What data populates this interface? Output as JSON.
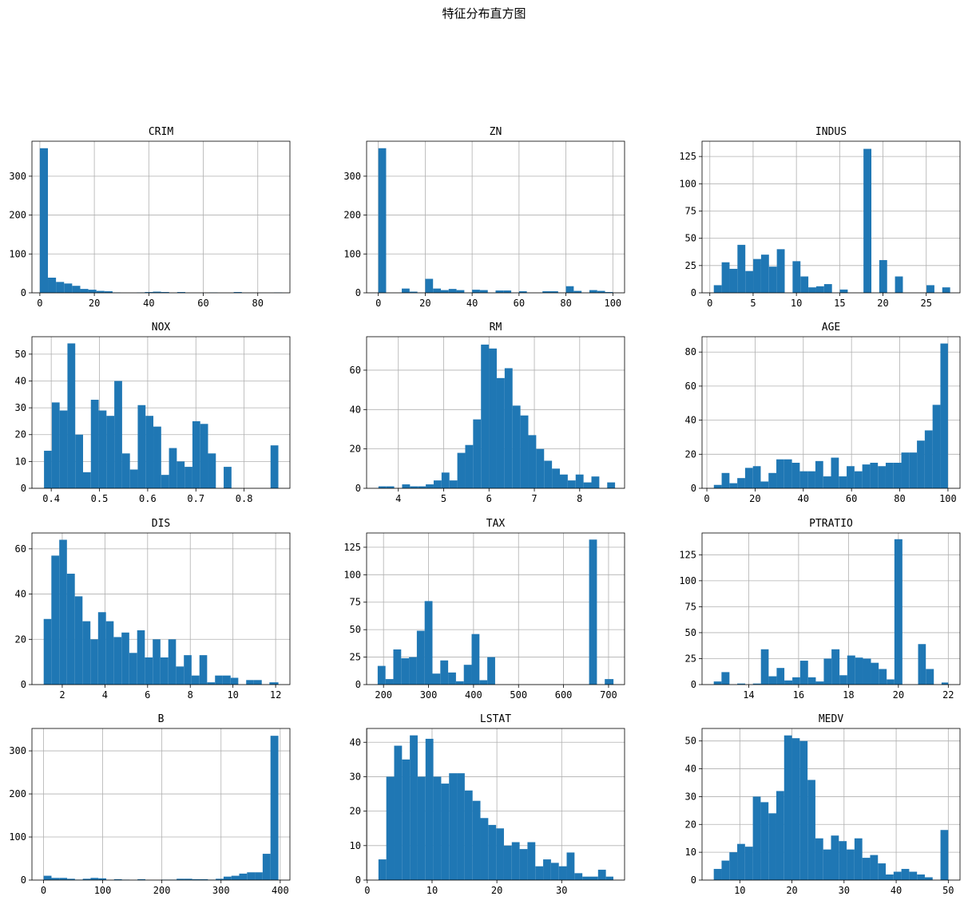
{
  "figure": {
    "title": "特征分布直方图",
    "bar_color": "#1f77b4",
    "grid_color": "#b0b0b0"
  },
  "chart_data": [
    {
      "type": "bar",
      "title": "CRIM",
      "xlim": [
        -2.9,
        91.8
      ],
      "ylim": [
        0,
        390
      ],
      "xticks": [
        0,
        20,
        40,
        60,
        80
      ],
      "yticks": [
        0,
        100,
        200,
        300
      ],
      "bin_edges": [
        0.0,
        2.97,
        5.93,
        8.9,
        11.86,
        14.83,
        17.79,
        20.76,
        23.72,
        26.69,
        29.65,
        32.62,
        35.58,
        38.55,
        41.52,
        44.48,
        47.45,
        50.41,
        53.38,
        56.34,
        59.31,
        62.27,
        65.24,
        68.2,
        71.17,
        74.14,
        77.1,
        80.07,
        83.03,
        86.0,
        88.97
      ],
      "counts": [
        372,
        39,
        28,
        24,
        18,
        10,
        8,
        5,
        4,
        1,
        0,
        0,
        1,
        2,
        3,
        2,
        0,
        2,
        0,
        0,
        0,
        1,
        0,
        0,
        2,
        0,
        0,
        0,
        0,
        1
      ]
    },
    {
      "type": "bar",
      "title": "ZN",
      "xlim": [
        -5,
        105
      ],
      "ylim": [
        0,
        390
      ],
      "xticks": [
        0,
        20,
        40,
        60,
        80,
        100
      ],
      "yticks": [
        0,
        100,
        200,
        300
      ],
      "bin_edges": [
        0.0,
        3.33,
        6.67,
        10.0,
        13.33,
        16.67,
        20.0,
        23.33,
        26.67,
        30.0,
        33.33,
        36.67,
        40.0,
        43.33,
        46.67,
        50.0,
        53.33,
        56.67,
        60.0,
        63.33,
        66.67,
        70.0,
        73.33,
        76.67,
        80.0,
        83.33,
        86.67,
        90.0,
        93.33,
        96.67,
        100.0
      ],
      "counts": [
        372,
        0,
        0,
        11,
        3,
        0,
        36,
        11,
        7,
        10,
        7,
        0,
        8,
        7,
        0,
        6,
        6,
        0,
        4,
        0,
        0,
        4,
        4,
        0,
        17,
        5,
        0,
        7,
        5,
        2
      ]
    },
    {
      "type": "bar",
      "title": "INDUS",
      "xlim": [
        -0.9,
        28.9
      ],
      "ylim": [
        0,
        139
      ],
      "xticks": [
        0,
        5,
        10,
        15,
        20,
        25
      ],
      "yticks": [
        0,
        25,
        50,
        75,
        100,
        125
      ],
      "bin_edges": [
        0.46,
        1.37,
        2.28,
        3.19,
        4.1,
        5.01,
        5.92,
        6.83,
        7.74,
        8.65,
        9.56,
        10.47,
        11.38,
        12.29,
        13.2,
        14.11,
        15.02,
        15.93,
        16.84,
        17.75,
        18.66,
        19.57,
        20.48,
        21.39,
        22.3,
        23.21,
        24.12,
        25.03,
        25.94,
        26.85,
        27.76
      ],
      "counts": [
        7,
        28,
        22,
        44,
        20,
        31,
        35,
        24,
        40,
        0,
        29,
        15,
        5,
        6,
        8,
        0,
        3,
        0,
        0,
        132,
        0,
        30,
        0,
        15,
        0,
        0,
        0,
        7,
        0,
        5
      ]
    },
    {
      "type": "bar",
      "title": "NOX",
      "xlim": [
        0.36,
        0.895
      ],
      "ylim": [
        0,
        56.5
      ],
      "xticks": [
        0.4,
        0.5,
        0.6,
        0.7,
        0.8
      ],
      "xtick_labels": [
        "0.4",
        "0.5",
        "0.6",
        "0.7",
        "0.8"
      ],
      "yticks": [
        0,
        10,
        20,
        30,
        40,
        50
      ],
      "bin_edges": [
        0.385,
        0.4012,
        0.4174,
        0.4336,
        0.4498,
        0.466,
        0.4822,
        0.4984,
        0.5146,
        0.5308,
        0.547,
        0.5632,
        0.5794,
        0.5956,
        0.6118,
        0.628,
        0.6442,
        0.6604,
        0.6766,
        0.6928,
        0.709,
        0.7252,
        0.7414,
        0.7576,
        0.7738,
        0.79,
        0.8062,
        0.8224,
        0.8386,
        0.8548,
        0.871
      ],
      "counts": [
        14,
        32,
        29,
        54,
        20,
        6,
        33,
        29,
        27,
        40,
        13,
        7,
        31,
        27,
        23,
        5,
        15,
        10,
        8,
        25,
        24,
        13,
        0,
        8,
        0,
        0,
        0,
        0,
        0,
        16
      ]
    },
    {
      "type": "bar",
      "title": "RM",
      "xlim": [
        3.3,
        8.99
      ],
      "ylim": [
        0,
        77
      ],
      "xticks": [
        4,
        5,
        6,
        7,
        8,
        9
      ],
      "yticks": [
        0,
        20,
        40,
        60
      ],
      "bin_edges": [
        3.561,
        3.735,
        3.909,
        4.083,
        4.257,
        4.431,
        4.605,
        4.779,
        4.953,
        5.127,
        5.301,
        5.475,
        5.649,
        5.823,
        5.997,
        6.171,
        6.345,
        6.519,
        6.693,
        6.867,
        7.041,
        7.215,
        7.389,
        7.563,
        7.737,
        7.911,
        8.085,
        8.259,
        8.433,
        8.607,
        8.78
      ],
      "counts": [
        1,
        1,
        0,
        2,
        1,
        1,
        2,
        4,
        8,
        4,
        18,
        22,
        35,
        73,
        71,
        56,
        61,
        42,
        37,
        27,
        20,
        14,
        10,
        7,
        4,
        7,
        3,
        6,
        0,
        3
      ]
    },
    {
      "type": "bar",
      "title": "AGE",
      "xlim": [
        -2,
        105
      ],
      "ylim": [
        0,
        89
      ],
      "xticks": [
        0,
        20,
        40,
        60,
        80,
        100
      ],
      "yticks": [
        0,
        20,
        40,
        60,
        80
      ],
      "bin_edges": [
        2.9,
        6.14,
        9.38,
        12.62,
        15.86,
        19.1,
        22.34,
        25.58,
        28.82,
        32.06,
        35.3,
        38.54,
        41.78,
        45.02,
        48.26,
        51.5,
        54.74,
        57.98,
        61.22,
        64.46,
        67.7,
        70.94,
        74.18,
        77.42,
        80.66,
        83.9,
        87.14,
        90.38,
        93.62,
        96.86,
        100.0
      ],
      "counts": [
        2,
        9,
        3,
        6,
        12,
        13,
        4,
        9,
        17,
        17,
        15,
        10,
        10,
        16,
        7,
        18,
        7,
        13,
        10,
        14,
        15,
        13,
        15,
        15,
        21,
        21,
        28,
        34,
        49,
        85
      ]
    },
    {
      "type": "bar",
      "title": "DIS",
      "xlim": [
        0.58,
        12.67
      ],
      "ylim": [
        0,
        67
      ],
      "xticks": [
        2,
        4,
        6,
        8,
        10,
        12
      ],
      "yticks": [
        0,
        20,
        40,
        60
      ],
      "bin_edges": [
        1.13,
        1.49,
        1.86,
        2.22,
        2.59,
        2.95,
        3.32,
        3.68,
        4.05,
        4.41,
        4.78,
        5.14,
        5.51,
        5.87,
        6.24,
        6.6,
        6.97,
        7.33,
        7.7,
        8.06,
        8.43,
        8.79,
        9.16,
        9.52,
        9.89,
        10.25,
        10.62,
        10.98,
        11.35,
        11.71,
        12.13
      ],
      "counts": [
        29,
        57,
        64,
        49,
        39,
        28,
        20,
        32,
        28,
        21,
        23,
        14,
        24,
        12,
        20,
        12,
        20,
        8,
        13,
        4,
        13,
        1,
        4,
        4,
        3,
        0,
        2,
        2,
        0,
        1
      ]
    },
    {
      "type": "bar",
      "title": "TAX",
      "xlim": [
        162.4,
        735.6
      ],
      "ylim": [
        0,
        138
      ],
      "xticks": [
        200,
        300,
        400,
        500,
        600,
        700
      ],
      "yticks": [
        0,
        25,
        50,
        75,
        100,
        125
      ],
      "bin_edges": [
        187.0,
        204.4,
        221.8,
        239.2,
        256.6,
        274.0,
        291.4,
        308.8,
        326.2,
        343.6,
        361.0,
        378.4,
        395.8,
        413.2,
        430.6,
        448.0,
        465.4,
        482.8,
        500.2,
        517.6,
        535.0,
        552.4,
        569.8,
        587.2,
        604.6,
        622.0,
        639.4,
        656.8,
        674.2,
        691.6,
        711.0
      ],
      "counts": [
        17,
        5,
        32,
        24,
        25,
        49,
        76,
        10,
        22,
        11,
        3,
        18,
        46,
        4,
        25,
        0,
        0,
        0,
        0,
        0,
        0,
        0,
        0,
        0,
        0,
        0,
        0,
        132,
        0,
        5
      ]
    },
    {
      "type": "bar",
      "title": "PTRATIO",
      "xlim": [
        12.13,
        22.47
      ],
      "ylim": [
        0,
        146
      ],
      "xticks": [
        14,
        16,
        18,
        20,
        22
      ],
      "yticks": [
        0,
        25,
        50,
        75,
        100,
        125
      ],
      "bin_edges": [
        12.6,
        12.91,
        13.23,
        13.54,
        13.86,
        14.17,
        14.49,
        14.8,
        15.12,
        15.43,
        15.75,
        16.06,
        16.38,
        16.69,
        17.01,
        17.32,
        17.64,
        17.95,
        18.27,
        18.58,
        18.9,
        19.21,
        19.53,
        19.84,
        20.16,
        20.47,
        20.79,
        21.1,
        21.42,
        21.73,
        22.0
      ],
      "counts": [
        3,
        12,
        0,
        1,
        0,
        1,
        34,
        8,
        16,
        4,
        7,
        23,
        7,
        3,
        25,
        34,
        9,
        28,
        26,
        25,
        21,
        15,
        5,
        140,
        0,
        0,
        39,
        15,
        0,
        2
      ]
    },
    {
      "type": "bar",
      "title": "B",
      "xlim": [
        -19.5,
        416.4
      ],
      "ylim": [
        0,
        352
      ],
      "xticks": [
        0,
        100,
        200,
        300,
        400
      ],
      "yticks": [
        0,
        100,
        200,
        300
      ],
      "bin_edges": [
        0.32,
        13.53,
        26.75,
        39.96,
        53.18,
        66.39,
        79.61,
        92.82,
        106.04,
        119.25,
        132.47,
        145.68,
        158.9,
        172.11,
        185.33,
        198.54,
        211.76,
        224.97,
        238.19,
        251.4,
        264.62,
        277.83,
        291.05,
        304.26,
        317.48,
        330.69,
        343.91,
        357.12,
        370.34,
        383.55,
        396.9
      ],
      "counts": [
        10,
        5,
        5,
        3,
        1,
        3,
        5,
        4,
        0,
        2,
        1,
        0,
        2,
        0,
        0,
        1,
        1,
        3,
        3,
        2,
        2,
        1,
        3,
        8,
        10,
        15,
        18,
        18,
        61,
        335
      ]
    },
    {
      "type": "bar",
      "title": "LSTAT",
      "xlim": [
        -0.1,
        39.7
      ],
      "ylim": [
        0,
        44
      ],
      "xticks": [
        0,
        10,
        20,
        30
      ],
      "yticks": [
        0,
        10,
        20,
        30,
        40
      ],
      "bin_edges": [
        1.73,
        2.94,
        4.15,
        5.36,
        6.57,
        7.78,
        8.99,
        10.2,
        11.41,
        12.62,
        13.83,
        15.04,
        16.25,
        17.46,
        18.67,
        19.88,
        21.09,
        22.3,
        23.51,
        24.72,
        25.93,
        27.14,
        28.35,
        29.56,
        30.77,
        31.98,
        33.19,
        34.4,
        35.61,
        36.82,
        37.97
      ],
      "counts": [
        6,
        30,
        39,
        35,
        42,
        30,
        41,
        30,
        28,
        31,
        31,
        26,
        23,
        18,
        16,
        15,
        10,
        11,
        9,
        11,
        4,
        6,
        5,
        4,
        8,
        2,
        1,
        1,
        3,
        1
      ]
    },
    {
      "type": "bar",
      "title": "MEDV",
      "xlim": [
        2.75,
        52.25
      ],
      "ylim": [
        0,
        54.5
      ],
      "xticks": [
        10,
        20,
        30,
        40,
        50
      ],
      "yticks": [
        0,
        10,
        20,
        30,
        40,
        50
      ],
      "bin_edges": [
        5.0,
        6.5,
        8.0,
        9.5,
        11.0,
        12.5,
        14.0,
        15.5,
        17.0,
        18.5,
        20.0,
        21.5,
        23.0,
        24.5,
        26.0,
        27.5,
        29.0,
        30.5,
        32.0,
        33.5,
        35.0,
        36.5,
        38.0,
        39.5,
        41.0,
        42.5,
        44.0,
        45.5,
        47.0,
        48.5,
        50.0
      ],
      "counts": [
        4,
        7,
        10,
        13,
        12,
        30,
        28,
        24,
        32,
        52,
        51,
        50,
        36,
        15,
        11,
        16,
        14,
        11,
        15,
        8,
        9,
        6,
        2,
        3,
        4,
        3,
        2,
        1,
        0,
        18
      ]
    }
  ]
}
